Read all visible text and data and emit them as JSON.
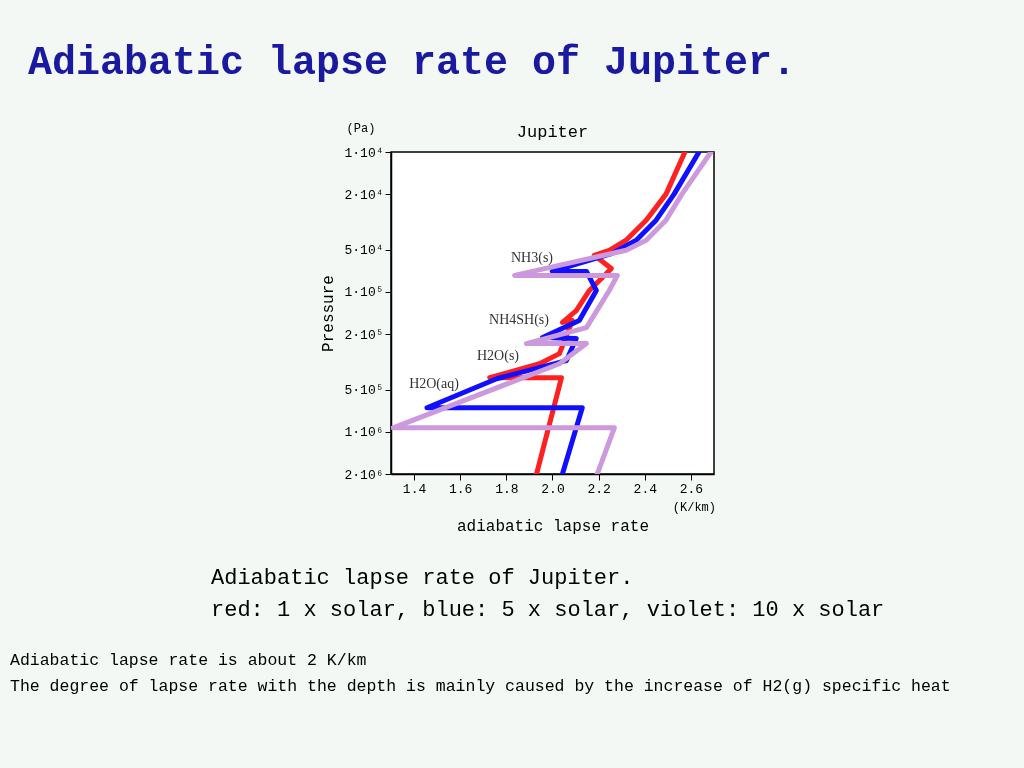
{
  "chart_data": {
    "type": "line",
    "title": "Adiabatic lapse rate of Jupiter.",
    "subtitle": "Jupiter",
    "xlabel": "adiabatic lapse rate",
    "ylabel": "Pressure",
    "series": [
      {
        "color": "#ff2020",
        "x": [
          2.574,
          2.492,
          2.406,
          2.319,
          2.246,
          2.181,
          2.255,
          2.16,
          2.103,
          2.043,
          2.086,
          2.03,
          1.944,
          1.728,
          1.9,
          2.039,
          1.931
        ],
        "values": [
          10000,
          20000,
          30700,
          42700,
          50400,
          54700,
          67900,
          97600,
          136000,
          165000,
          160000,
          276000,
          326000,
          410000,
          410000,
          410000,
          2000000
        ]
      },
      {
        "color": "#1010ff",
        "x": [
          2.635,
          2.527,
          2.449,
          2.363,
          2.259,
          1.999,
          2.147,
          2.19,
          2.116,
          1.957,
          2.103,
          2.06,
          1.758,
          1.456,
          2.129,
          2.043
        ],
        "values": [
          10000,
          20000,
          30700,
          42700,
          53000,
          71300,
          71300,
          97600,
          160000,
          212000,
          215000,
          310000,
          417000,
          673000,
          673000,
          2000000
        ]
      },
      {
        "color": "#cc99dd",
        "x": [
          2.687,
          2.561,
          2.492,
          2.406,
          2.319,
          1.836,
          2.281,
          2.246,
          2.147,
          1.887,
          2.147,
          2.03,
          1.309,
          2.268,
          2.194
        ],
        "values": [
          10000,
          20000,
          30700,
          42700,
          50400,
          76200,
          76200,
          97600,
          180000,
          234000,
          234000,
          326000,
          936000,
          936000,
          2000000
        ]
      }
    ],
    "xlim": [
      1.3,
      2.7
    ],
    "xticks": [
      1.4,
      1.6,
      1.8,
      {
        "value": 2.0,
        "label": "2.0"
      },
      2.2,
      2.4,
      2.6
    ],
    "ylim": [
      2000000,
      10000
    ],
    "log": "y",
    "yticks": [
      {
        "value": 10000,
        "label": "1·10⁴"
      },
      {
        "value": 20000,
        "label": "2·10⁴"
      },
      {
        "value": 50000,
        "label": "5·10⁴"
      },
      {
        "value": 100000,
        "label": "1·10⁵"
      },
      {
        "value": 200000,
        "label": "2·10⁵"
      },
      {
        "value": 500000,
        "label": "5·10⁵"
      },
      {
        "value": 1000000,
        "label": "1·10⁶"
      },
      {
        "value": 2000000,
        "label": "2·10⁶"
      }
    ],
    "grid": false,
    "annotations": [
      "NH3(s)",
      "NH4SH(s)",
      "H2O(s)",
      "H2O(aq)",
      "(Pa)",
      "(K/km)",
      "Adiabatic lapse rate of Jupiter.",
      "red: 1 x solar, blue: 5 x solar, violet: 10 x solar",
      "Adiabatic lapse rate is about 2 K/km",
      "The degree of lapse rate with the depth is mainly caused by the increase of H2(g) specific heat"
    ]
  }
}
